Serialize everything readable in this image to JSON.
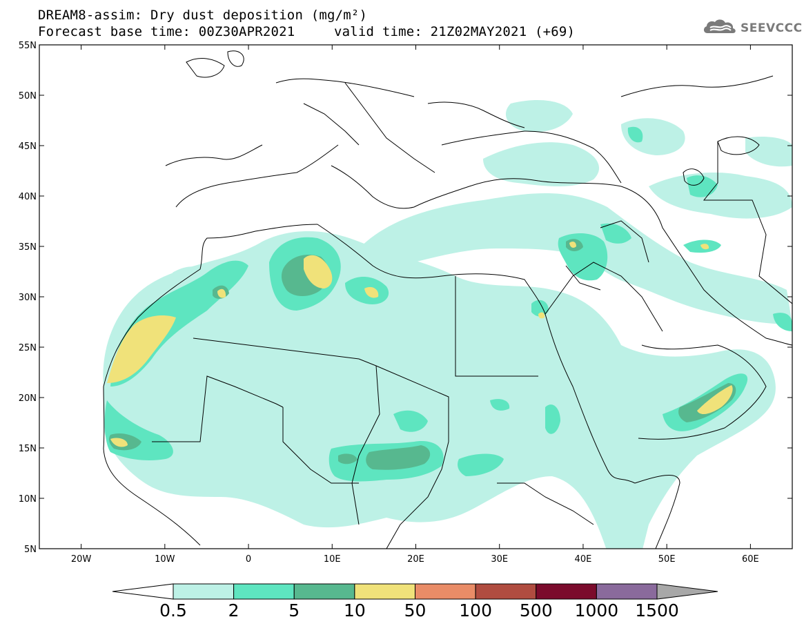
{
  "header": {
    "title_line1": "DREAM8-assim: Dry dust deposition (mg/m²)",
    "title_line2": "Forecast base time: 00Z30APR2021",
    "valid_time": "valid time: 21Z02MAY2021 (+69)",
    "logo_text": "SEEVCCC",
    "logo_icon": "cloud-logo-icon"
  },
  "map": {
    "lon_range": [
      -25,
      65
    ],
    "lat_range": [
      5,
      55
    ],
    "x_ticks": [
      {
        "lon": -20,
        "label": "20W"
      },
      {
        "lon": -10,
        "label": "10W"
      },
      {
        "lon": 0,
        "label": "0"
      },
      {
        "lon": 10,
        "label": "10E"
      },
      {
        "lon": 20,
        "label": "20E"
      },
      {
        "lon": 30,
        "label": "30E"
      },
      {
        "lon": 40,
        "label": "40E"
      },
      {
        "lon": 50,
        "label": "50E"
      },
      {
        "lon": 60,
        "label": "60E"
      }
    ],
    "y_ticks": [
      {
        "lat": 55,
        "label": "55N"
      },
      {
        "lat": 50,
        "label": "50N"
      },
      {
        "lat": 45,
        "label": "45N"
      },
      {
        "lat": 40,
        "label": "40N"
      },
      {
        "lat": 35,
        "label": "35N"
      },
      {
        "lat": 30,
        "label": "30N"
      },
      {
        "lat": 25,
        "label": "25N"
      },
      {
        "lat": 20,
        "label": "20N"
      },
      {
        "lat": 15,
        "label": "15N"
      },
      {
        "lat": 10,
        "label": "10N"
      },
      {
        "lat": 5,
        "label": "5N"
      }
    ]
  },
  "colorbar": {
    "levels": [
      "0.5",
      "2",
      "5",
      "10",
      "50",
      "100",
      "500",
      "1000",
      "1500"
    ],
    "colors": [
      "#ffffff",
      "#bdf1e6",
      "#5ee5c0",
      "#57b88f",
      "#f0e27a",
      "#e98c67",
      "#b04c40",
      "#7b0b2c",
      "#8a6a9c",
      "#a8a8a8"
    ]
  }
}
